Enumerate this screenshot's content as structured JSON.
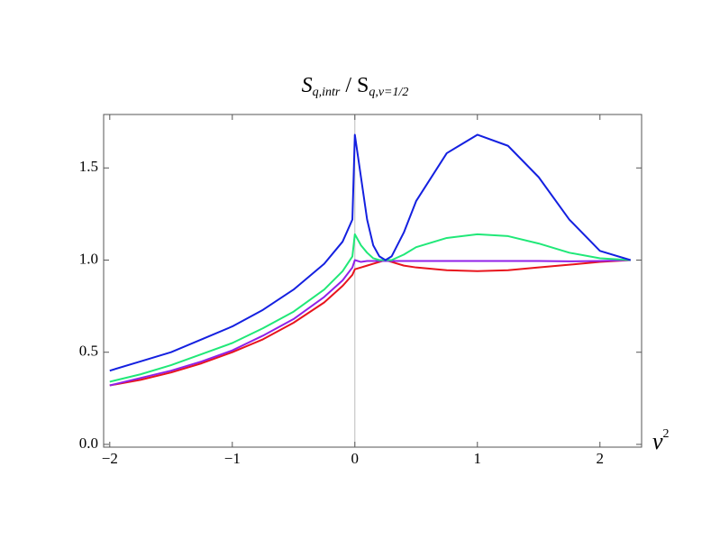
{
  "chart_data": {
    "type": "line",
    "title": [
      "S",
      "q,intr",
      " / S",
      "q,ν=1/2"
    ],
    "xlabel": [
      "ν",
      "2"
    ],
    "x": [
      -2,
      -1.75,
      -1.5,
      -1.25,
      -1,
      -0.75,
      -0.5,
      -0.25,
      -0.1,
      -0.02,
      0,
      0.05,
      0.1,
      0.15,
      0.2,
      0.25,
      0.3,
      0.4,
      0.5,
      0.75,
      1,
      1.25,
      1.5,
      1.75,
      2,
      2.25
    ],
    "series": [
      {
        "color": "#e8141c",
        "values": [
          0.32,
          0.35,
          0.39,
          0.44,
          0.5,
          0.57,
          0.66,
          0.77,
          0.86,
          0.92,
          0.95,
          0.96,
          0.97,
          0.98,
          0.99,
          1.0,
          0.99,
          0.97,
          0.96,
          0.945,
          0.94,
          0.945,
          0.96,
          0.975,
          0.99,
          1.0
        ]
      },
      {
        "color": "#9020e8",
        "values": [
          0.32,
          0.36,
          0.4,
          0.45,
          0.51,
          0.59,
          0.68,
          0.8,
          0.89,
          0.96,
          1.0,
          0.99,
          0.995,
          0.995,
          0.995,
          0.995,
          0.995,
          0.995,
          0.995,
          0.995,
          0.995,
          0.995,
          0.995,
          0.993,
          0.995,
          1.0
        ]
      },
      {
        "color": "#20e878",
        "values": [
          0.34,
          0.38,
          0.43,
          0.49,
          0.55,
          0.63,
          0.72,
          0.84,
          0.94,
          1.02,
          1.14,
          1.08,
          1.04,
          1.01,
          1.0,
          1.0,
          1.0,
          1.03,
          1.07,
          1.12,
          1.14,
          1.13,
          1.09,
          1.04,
          1.01,
          1.0
        ]
      },
      {
        "color": "#1420e0",
        "values": [
          0.4,
          0.45,
          0.5,
          0.57,
          0.64,
          0.73,
          0.84,
          0.98,
          1.1,
          1.22,
          1.68,
          1.45,
          1.22,
          1.08,
          1.02,
          1.0,
          1.02,
          1.15,
          1.32,
          1.58,
          1.68,
          1.62,
          1.45,
          1.22,
          1.05,
          1.0
        ]
      }
    ],
    "xlim": [
      -2.05,
      2.34
    ],
    "ylim": [
      -0.015,
      1.79
    ],
    "xticks": [
      {
        "value": -2,
        "label": "−2"
      },
      {
        "value": -1,
        "label": "−1"
      },
      0,
      1,
      2
    ],
    "yticks": [
      {
        "value": 0,
        "label": "0.0"
      },
      0.5,
      {
        "value": 1,
        "label": "1.0"
      },
      1.5
    ]
  }
}
